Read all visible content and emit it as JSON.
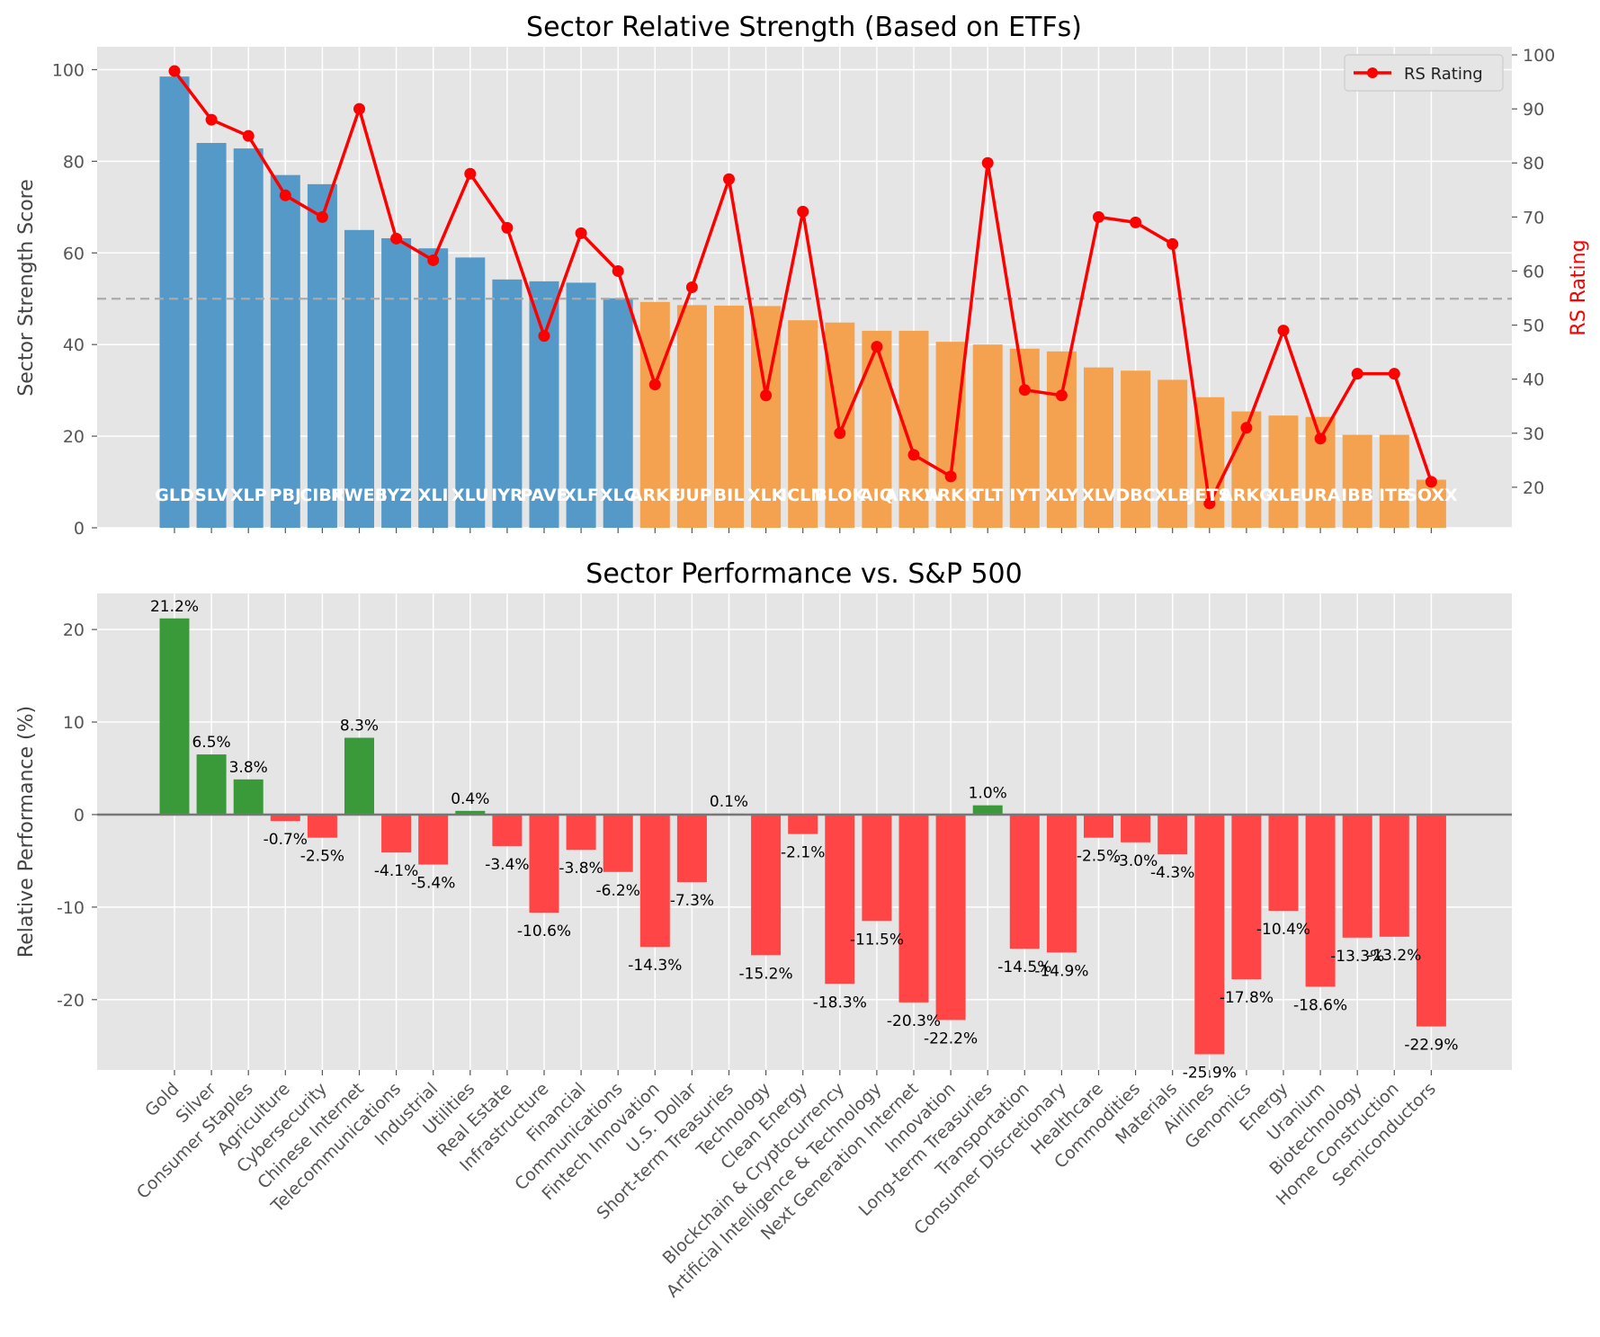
{
  "chart_data": [
    {
      "type": "bar",
      "title": "Sector Relative Strength (Based on ETFs)",
      "ylabel": "Sector Strength Score",
      "y2label": "RS Rating",
      "ylim": [
        0,
        105
      ],
      "y2lim": [
        12.5,
        101.5
      ],
      "yticks": [
        0,
        20,
        40,
        60,
        80,
        100
      ],
      "y2ticks": [
        20,
        30,
        40,
        50,
        60,
        70,
        80,
        90,
        100
      ],
      "threshold": 50,
      "grid": true,
      "legend": {
        "position": "top-right",
        "entries": [
          "RS Rating"
        ]
      },
      "colors": {
        "strong": "#5599c8",
        "weak": "#f5a250",
        "line": "#ff0000",
        "threshold": "#aaaaaa"
      },
      "etfs": [
        "GLD",
        "SLV",
        "XLP",
        "PBJ",
        "CIBR",
        "KWEB",
        "IYZ",
        "XLI",
        "XLU",
        "IYR",
        "PAVE",
        "XLF",
        "XLC",
        "ARKF",
        "UUP",
        "BIL",
        "XLK",
        "ICLN",
        "BLOK",
        "AIQ",
        "ARKW",
        "ARKK",
        "TLT",
        "IYT",
        "XLY",
        "XLV",
        "DBC",
        "XLB",
        "JETS",
        "ARKG",
        "XLE",
        "URA",
        "IBB",
        "ITB",
        "SOXX"
      ],
      "series": [
        {
          "name": "Sector Strength Score",
          "values": [
            98.5,
            84,
            82.8,
            77,
            75,
            65,
            63.2,
            61,
            59,
            54.2,
            53.8,
            53.5,
            50.1,
            49.3,
            48.6,
            48.5,
            48.4,
            45.3,
            44.8,
            43,
            43,
            40.6,
            40,
            39.1,
            38.5,
            35,
            34.3,
            32.3,
            28.5,
            25.4,
            24.5,
            24.2,
            20.3,
            20.3,
            10.5
          ]
        },
        {
          "name": "RS Rating",
          "values": [
            97,
            88,
            85,
            74,
            70,
            90,
            66,
            62,
            78,
            68,
            48,
            67,
            60,
            39,
            57,
            77,
            37,
            71,
            30,
            46,
            26,
            22,
            80,
            38,
            37,
            70,
            69,
            65,
            17,
            31,
            49,
            29,
            41,
            41,
            21
          ]
        }
      ]
    },
    {
      "type": "bar",
      "title": "Sector Performance vs. S&P 500",
      "ylabel": "Relative Performance (%)",
      "ylim": [
        -27.6,
        23.9
      ],
      "yticks": [
        -20,
        -10,
        0,
        10,
        20
      ],
      "grid": true,
      "colors": {
        "positive": "#3a9a3a",
        "negative": "#ff4545",
        "zero_line": "#777777"
      },
      "categories": [
        "Gold",
        "Silver",
        "Consumer Staples",
        "Agriculture",
        "Cybersecurity",
        "Chinese Internet",
        "Telecommunications",
        "Industrial",
        "Utilities",
        "Real Estate",
        "Infrastructure",
        "Financial",
        "Communications",
        "Fintech Innovation",
        "U.S. Dollar",
        "Short-term Treasuries",
        "Technology",
        "Clean Energy",
        "Blockchain & Cryptocurrency",
        "Artificial Intelligence & Technology",
        "Next Generation Internet",
        "Innovation",
        "Long-term Treasuries",
        "Transportation",
        "Consumer Discretionary",
        "Healthcare",
        "Commodities",
        "Materials",
        "Airlines",
        "Genomics",
        "Energy",
        "Uranium",
        "Biotechnology",
        "Home Construction",
        "Semiconductors"
      ],
      "values": [
        21.2,
        6.5,
        3.8,
        -0.7,
        -2.5,
        8.3,
        -4.1,
        -5.4,
        0.4,
        -3.4,
        -10.6,
        -3.8,
        -6.2,
        -14.3,
        -7.3,
        0.1,
        -15.2,
        -2.1,
        -18.3,
        -11.5,
        -20.3,
        -22.2,
        1.0,
        -14.5,
        -14.9,
        -2.5,
        -3.0,
        -4.3,
        -25.9,
        -17.8,
        -10.4,
        -18.6,
        -13.3,
        -13.2,
        -22.9
      ],
      "value_labels": [
        "21.2%",
        "6.5%",
        "3.8%",
        "-0.7%",
        "-2.5%",
        "8.3%",
        "-4.1%",
        "-5.4%",
        "0.4%",
        "-3.4%",
        "-10.6%",
        "-3.8%",
        "-6.2%",
        "-14.3%",
        "-7.3%",
        "0.1%",
        "-15.2%",
        "-2.1%",
        "-18.3%",
        "-11.5%",
        "-20.3%",
        "-22.2%",
        "1.0%",
        "-14.5%",
        "-14.9%",
        "-2.5%",
        "-3.0%",
        "-4.3%",
        "-25.9%",
        "-17.8%",
        "-10.4%",
        "-18.6%",
        "-13.3%",
        "-13.2%",
        "-22.9%"
      ]
    }
  ]
}
